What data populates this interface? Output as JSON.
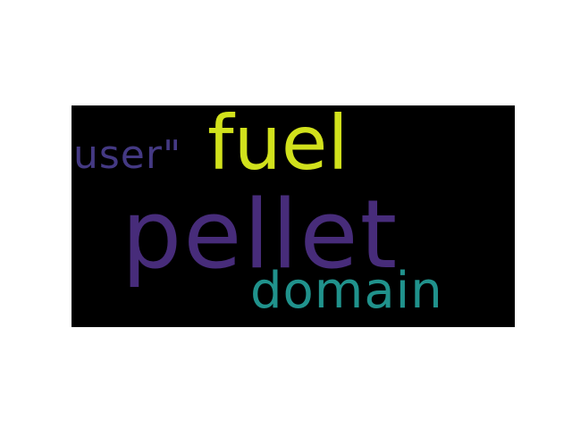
{
  "words": [
    {
      "text": "pellet",
      "color": "#472c7a"
    },
    {
      "text": "fuel",
      "color": "#d1e11c"
    },
    {
      "text": "domain",
      "color": "#20928c"
    },
    {
      "text": "user\"",
      "color": "#443983"
    }
  ],
  "background_color": "#000000",
  "page_color": "#ffffff"
}
